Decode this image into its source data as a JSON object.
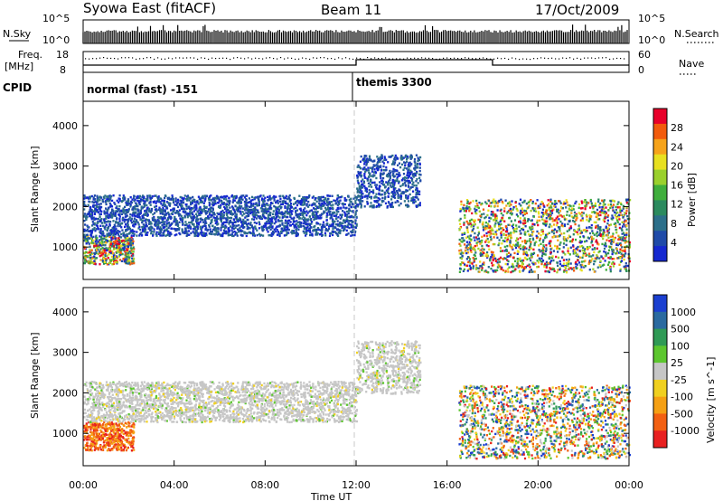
{
  "header": {
    "title": "Syowa East (fitACF)",
    "beam": "Beam 11",
    "date": "17/Oct/2009"
  },
  "top_panels": {
    "nsky_label": "N.Sky",
    "nsky_ticks": [
      "10^5",
      "10^0"
    ],
    "nsearch_label": "N.Search",
    "nsearch_ticks": [
      "10^5",
      "10^0"
    ],
    "freq_label": "Freq.",
    "freq_unit": "[MHz]",
    "freq_ticks": [
      "18",
      "8"
    ],
    "nave_label": "Nave",
    "nave_ticks": [
      "60",
      "0"
    ],
    "cpid_label": "CPID",
    "cpid_modes": [
      {
        "name": "normal (fast) -151",
        "start_hour": 0
      },
      {
        "name": "themis 3300",
        "start_hour": 12
      }
    ]
  },
  "colorbars": [
    {
      "label": "Power [dB]",
      "ticks": [
        "28",
        "24",
        "20",
        "16",
        "12",
        "8",
        "4"
      ],
      "colors": [
        "#e8002a",
        "#f25b0c",
        "#f6a31a",
        "#e8e020",
        "#9ad02c",
        "#3fae3c",
        "#2b8a5e",
        "#2c6f8a",
        "#1f4aa8",
        "#1528d0"
      ]
    },
    {
      "label": "Velocity [m s^-1]",
      "ticks": [
        "1000",
        "500",
        "100",
        "25",
        "-25",
        "-100",
        "-500",
        "-1000"
      ],
      "colors": [
        "#1b3fd0",
        "#2a6aa0",
        "#2f9a55",
        "#5cc62e",
        "#c6c6c6",
        "#f0d020",
        "#f5a014",
        "#f26012",
        "#e82020"
      ]
    }
  ],
  "chart_data": [
    {
      "type": "heatmap",
      "title": "Power",
      "xlabel": "Time UT",
      "ylabel": "Slant Range [km]",
      "xlim": [
        0,
        24
      ],
      "ylim": [
        200,
        4600
      ],
      "x_ticks": [
        "00:00",
        "04:00",
        "08:00",
        "12:00",
        "16:00",
        "20:00",
        "00:00"
      ],
      "y_ticks": [
        1000,
        2000,
        3000,
        4000
      ],
      "echo_regions": [
        {
          "t": [
            0.0,
            2.2
          ],
          "r": [
            600,
            1300
          ],
          "level": "mixed"
        },
        {
          "t": [
            0.0,
            12.0
          ],
          "r": [
            1300,
            2300
          ],
          "level": "low"
        },
        {
          "t": [
            12.0,
            14.8
          ],
          "r": [
            2000,
            3300
          ],
          "level": "low"
        },
        {
          "t": [
            16.5,
            24.0
          ],
          "r": [
            400,
            2200
          ],
          "level": "mixed"
        }
      ]
    },
    {
      "type": "heatmap",
      "title": "Velocity",
      "xlabel": "Time UT",
      "ylabel": "Slant Range [km]",
      "xlim": [
        0,
        24
      ],
      "ylim": [
        200,
        4600
      ],
      "x_ticks": [
        "00:00",
        "04:00",
        "08:00",
        "12:00",
        "16:00",
        "20:00",
        "00:00"
      ],
      "y_ticks": [
        1000,
        2000,
        3000,
        4000
      ],
      "echo_regions": [
        {
          "t": [
            0.0,
            2.2
          ],
          "r": [
            600,
            1300
          ],
          "level": "negative"
        },
        {
          "t": [
            0.0,
            12.0
          ],
          "r": [
            1300,
            2300
          ],
          "level": "near-zero"
        },
        {
          "t": [
            12.0,
            14.8
          ],
          "r": [
            2000,
            3300
          ],
          "level": "near-zero"
        },
        {
          "t": [
            16.5,
            24.0
          ],
          "r": [
            400,
            2200
          ],
          "level": "mixed"
        }
      ]
    }
  ]
}
